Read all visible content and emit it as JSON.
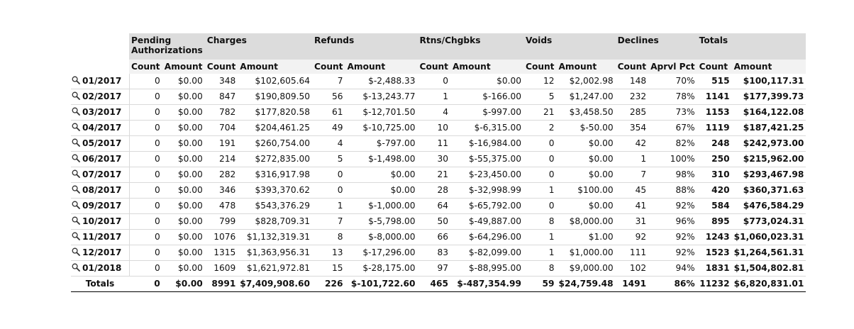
{
  "headers": {
    "groups": [
      "Pending\nAuthorizations",
      "Charges",
      "Refunds",
      "Rtns/Chgbks",
      "Voids",
      "Declines",
      "Totals"
    ],
    "pending_line1": "Pending",
    "pending_line2": "Authorizations",
    "sub": [
      "Count",
      "Amount",
      "Count",
      "Amount",
      "Count",
      "Amount",
      "Count",
      "Amount",
      "Count",
      "Amount",
      "Count",
      "Aprvl Pct",
      "Count",
      "Amount"
    ]
  },
  "rows": [
    {
      "period": "01/2017",
      "cells": [
        "0",
        "$0.00",
        "348",
        "$102,605.64",
        "7",
        "$-2,488.33",
        "0",
        "$0.00",
        "12",
        "$2,002.98",
        "148",
        "70%",
        "515",
        "$100,117.31"
      ]
    },
    {
      "period": "02/2017",
      "cells": [
        "0",
        "$0.00",
        "847",
        "$190,809.50",
        "56",
        "$-13,243.77",
        "1",
        "$-166.00",
        "5",
        "$1,247.00",
        "232",
        "78%",
        "1141",
        "$177,399.73"
      ]
    },
    {
      "period": "03/2017",
      "cells": [
        "0",
        "$0.00",
        "782",
        "$177,820.58",
        "61",
        "$-12,701.50",
        "4",
        "$-997.00",
        "21",
        "$3,458.50",
        "285",
        "73%",
        "1153",
        "$164,122.08"
      ]
    },
    {
      "period": "04/2017",
      "cells": [
        "0",
        "$0.00",
        "704",
        "$204,461.25",
        "49",
        "$-10,725.00",
        "10",
        "$-6,315.00",
        "2",
        "$-50.00",
        "354",
        "67%",
        "1119",
        "$187,421.25"
      ]
    },
    {
      "period": "05/2017",
      "cells": [
        "0",
        "$0.00",
        "191",
        "$260,754.00",
        "4",
        "$-797.00",
        "11",
        "$-16,984.00",
        "0",
        "$0.00",
        "42",
        "82%",
        "248",
        "$242,973.00"
      ]
    },
    {
      "period": "06/2017",
      "cells": [
        "0",
        "$0.00",
        "214",
        "$272,835.00",
        "5",
        "$-1,498.00",
        "30",
        "$-55,375.00",
        "0",
        "$0.00",
        "1",
        "100%",
        "250",
        "$215,962.00"
      ]
    },
    {
      "period": "07/2017",
      "cells": [
        "0",
        "$0.00",
        "282",
        "$316,917.98",
        "0",
        "$0.00",
        "21",
        "$-23,450.00",
        "0",
        "$0.00",
        "7",
        "98%",
        "310",
        "$293,467.98"
      ]
    },
    {
      "period": "08/2017",
      "cells": [
        "0",
        "$0.00",
        "346",
        "$393,370.62",
        "0",
        "$0.00",
        "28",
        "$-32,998.99",
        "1",
        "$100.00",
        "45",
        "88%",
        "420",
        "$360,371.63"
      ]
    },
    {
      "period": "09/2017",
      "cells": [
        "0",
        "$0.00",
        "478",
        "$543,376.29",
        "1",
        "$-1,000.00",
        "64",
        "$-65,792.00",
        "0",
        "$0.00",
        "41",
        "92%",
        "584",
        "$476,584.29"
      ]
    },
    {
      "period": "10/2017",
      "cells": [
        "0",
        "$0.00",
        "799",
        "$828,709.31",
        "7",
        "$-5,798.00",
        "50",
        "$-49,887.00",
        "8",
        "$8,000.00",
        "31",
        "96%",
        "895",
        "$773,024.31"
      ]
    },
    {
      "period": "11/2017",
      "cells": [
        "0",
        "$0.00",
        "1076",
        "$1,132,319.31",
        "8",
        "$-8,000.00",
        "66",
        "$-64,296.00",
        "1",
        "$1.00",
        "92",
        "92%",
        "1243",
        "$1,060,023.31"
      ]
    },
    {
      "period": "12/2017",
      "cells": [
        "0",
        "$0.00",
        "1315",
        "$1,363,956.31",
        "13",
        "$-17,296.00",
        "83",
        "$-82,099.00",
        "1",
        "$1,000.00",
        "111",
        "92%",
        "1523",
        "$1,264,561.31"
      ]
    },
    {
      "period": "01/2018",
      "cells": [
        "0",
        "$0.00",
        "1609",
        "$1,621,972.81",
        "15",
        "$-28,175.00",
        "97",
        "$-88,995.00",
        "8",
        "$9,000.00",
        "102",
        "94%",
        "1831",
        "$1,504,802.81"
      ]
    }
  ],
  "totals": {
    "label": "Totals",
    "cells": [
      "0",
      "$0.00",
      "8991",
      "$7,409,908.60",
      "226",
      "$-101,722.60",
      "465",
      "$-487,354.99",
      "59",
      "$24,759.48",
      "1491",
      "86%",
      "11232",
      "$6,820,831.01"
    ]
  },
  "icons": {
    "row_link": "magnifier-icon"
  },
  "colors": {
    "group_header_bg": "#dcdcdc",
    "sub_header_bg": "#f2f2f2",
    "row_border": "#d9d9d9"
  }
}
